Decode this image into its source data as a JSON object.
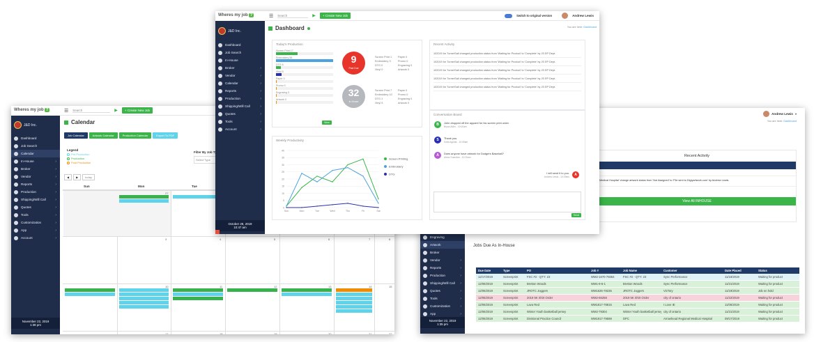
{
  "brand": {
    "name": "Wheres my job",
    "q": "?",
    "company": "J&D Inc."
  },
  "win1": {
    "search_placeholder": "Search",
    "create": "+ Create New Job",
    "page_title": "Calendar",
    "buttons": [
      "Job Calendar",
      "Artwork Calendar",
      "Production Calendar",
      "Export To PDF"
    ],
    "legend": {
      "title": "Legend",
      "items": [
        {
          "label": "Pre Production",
          "color": "#5fd3ea"
        },
        {
          "label": "Production",
          "color": "#37b24d"
        },
        {
          "label": "Post Production",
          "color": "#f08c00"
        }
      ]
    },
    "filter": {
      "label": "Filter By Job Type",
      "placeholder": "Select Type"
    },
    "today": "today",
    "days": [
      "Sun",
      "Mon",
      "Tue"
    ],
    "dates_row1": [
      "27",
      "28"
    ],
    "dates_row2": [
      "3",
      "4",
      "5",
      "6",
      "7",
      "8"
    ],
    "dates_row3": [
      "10",
      "11",
      "12",
      "13",
      "14",
      "15"
    ],
    "dates_row4": [
      "17",
      "18",
      "19",
      "20",
      "21",
      "22"
    ],
    "nav": [
      "Dashboard",
      "Job Search",
      "Calendar",
      "In-House",
      "Broker",
      "Vendor",
      "Reports",
      "Production",
      "Shipping/Will Call",
      "Quotes",
      "Tools",
      "Customization",
      "App",
      "Account"
    ],
    "clock": {
      "date": "November 22, 2019",
      "time": "1:38 pm"
    }
  },
  "win2": {
    "search_placeholder": "Search",
    "create": "+ Create New Job",
    "toggle": "Switch to original version",
    "user": "Andrew Lewis",
    "you_are": "You are here:",
    "crumb": "Dashboard",
    "page_title": "Dashboard",
    "nav": [
      "Dashboard",
      "Job Search",
      "In-House",
      "Broker",
      "Vendor",
      "Calendar",
      "Reports",
      "Production",
      "Shipping/Will Call",
      "Quotes",
      "Tools",
      "Account"
    ],
    "clock": {
      "date": "October 28, 2019",
      "time": "10:47 am"
    },
    "prod_title": "Today's Production",
    "prod_bars": [
      {
        "label": "Screen Print 17",
        "pct": 0.38,
        "color": "#3bb54a"
      },
      {
        "label": "Embroidery 56",
        "pct": 1.0,
        "color": "#4aa3df"
      },
      {
        "label": "DTG 6",
        "pct": 0.08,
        "color": "#3bb54a"
      },
      {
        "label": "Vinyl 5",
        "pct": 0.1,
        "color": "#2a2fb0"
      },
      {
        "label": "Paper 0",
        "pct": 0.0,
        "color": "#f08c00"
      },
      {
        "label": "Promo 0",
        "pct": 0.0,
        "color": "#f08c00"
      },
      {
        "label": "Engraving 0",
        "pct": 0.0,
        "color": "#f08c00"
      },
      {
        "label": "Artwork 0",
        "pct": 0.0,
        "color": "#f08c00"
      }
    ],
    "past_due": {
      "value": "9",
      "label": "Past Due"
    },
    "in_house": {
      "value": "32",
      "label": "In-House"
    },
    "prod_stats_top": [
      "Screen Print 1",
      "Paper 0",
      "Embroidery 3",
      "Promo 0",
      "DTG 0",
      "Engraving 0",
      "Vinyl 0",
      "Artwork 0"
    ],
    "prod_stats_bottom": [
      "Screen Print 7",
      "Paper 0",
      "Embroidery 10",
      "Promo 0",
      "DTG 1",
      "Engraving 0",
      "Vinyl 5",
      "Artwork 0"
    ],
    "view": "View",
    "recent_title": "Recent Activity",
    "recent": [
      "102019 for TurnerSall changed production status from 'Waiting for Product' to 'Complete' by JS EP Dept.",
      "102019 for TurnerSall changed production status from 'Waiting for Product' to 'Complete' by JS EP Dept.",
      "102019 for TurnerSall changed production status from 'Waiting for Product' to 'Complete' by JS EP Dept.",
      "102019 for TurnerSall changed production status from 'Waiting for Product' to 'Complete' by JS EP Dept.",
      "102019 for TurnerSall changed production status from 'Waiting for Product' to 'Complete' by JS EP Dept."
    ],
    "conv_title": "Conversation Board",
    "messages": [
      {
        "i": "B",
        "color": "#3bb54a",
        "text": "John dropped off the apparel for his screen print order.",
        "by": "Bryan Adler - 10:00am"
      },
      {
        "i": "S",
        "color": "#2a2fb0",
        "text": "Thank you.",
        "by": "Sofia Aguilar - 10:05am"
      },
      {
        "i": "A",
        "color": "#b85ad6",
        "text": "Does anyone have artwork for Dodgers Baseball?",
        "by": "Alexa Guardian - 10:20am"
      },
      {
        "i": "A",
        "color": "#e8352b",
        "text": "I will send it to you.",
        "by": "Andrew Lewis - 10:29am"
      }
    ],
    "send": "Send",
    "weekly_title": "Weekly Productivity",
    "chart_data": {
      "type": "line",
      "title": "Weekly Productivity",
      "categories": [
        "Sun",
        "Mon",
        "Tue",
        "Wed",
        "Thu",
        "Fri",
        "Sat"
      ],
      "ylim": [
        0,
        40
      ],
      "yticks": [
        0,
        5,
        10,
        15,
        20,
        25,
        30,
        35,
        40
      ],
      "series": [
        {
          "name": "Screen Printing",
          "color": "#3bb54a",
          "values": [
            1,
            14,
            22,
            18,
            30,
            34,
            6
          ]
        },
        {
          "name": "Embroidery",
          "color": "#4aa3df",
          "values": [
            1,
            24,
            18,
            26,
            28,
            22,
            3
          ]
        },
        {
          "name": "DTG",
          "color": "#2a2fb0",
          "values": [
            0,
            0,
            1,
            2,
            3,
            1,
            0
          ]
        }
      ]
    }
  },
  "win3": {
    "user": "Andrew Lewis",
    "you_are": "You are here:",
    "crumb": "Dashboard",
    "recent_title": "Recent Activity",
    "activity_line": "Medical Hospital' change artwork status from 'Not Assigned' to 'File sent to Digiyartwork.com' by Andrew Lewis.",
    "view_all": "View All INHOUSE",
    "jobs_title": "Jobs Due As In-House",
    "nav": [
      "Engraving",
      "Artwork",
      "Broker",
      "Vendor",
      "Reports",
      "Production",
      "Shipping/Will Call",
      "Quotes",
      "Tools",
      "Customization",
      "App"
    ],
    "clock": {
      "date": "November 22, 2019",
      "time": "1:35 pm"
    },
    "headers": [
      "Due Date",
      "Type",
      "PO",
      "Job #",
      "Job Name",
      "Customer",
      "Date Placed",
      "Status"
    ],
    "rows": [
      {
        "c": [
          "12/17/2019",
          "Screenprint",
          "FSC #2 - QTY: 23",
          "WM2-1670-79364",
          "FSC #2 - QTY: 23",
          "Sync Performance",
          "11/18/2019",
          "Waiting for product"
        ],
        "bg": "#dff3f7"
      },
      {
        "c": [
          "12/06/2019",
          "Screenprint",
          "Bretton Woods",
          "WM1-9-6-1",
          "Bretton Woods",
          "Sync Performance",
          "11/21/2019",
          "Waiting for product"
        ],
        "bg": "#d8f1d8"
      },
      {
        "c": [
          "12/06/2019",
          "Screenprint",
          "JROTC Joggers",
          "WM1626-78235",
          "JROTC Joggers",
          "VicTory",
          "11/19/2019",
          "Job on hold"
        ],
        "bg": "#d8f1d8"
      },
      {
        "c": [
          "12/06/2019",
          "Screenprint",
          "2019 5K Shirt Order",
          "WM2-66258",
          "2019 5K Shirt Order",
          "city of ontario",
          "11/22/2019",
          "Waiting for product"
        ],
        "bg": "#f7d4dc"
      },
      {
        "c": [
          "12/06/2019",
          "Screenprint",
          "Lava Red",
          "WM1817-78815",
          "Lava Red",
          "I Love IE",
          "11/05/2019",
          "Waiting for product"
        ],
        "bg": "#d8f1d8"
      },
      {
        "c": [
          "12/06/2019",
          "Screenprint",
          "Winter Youth basketball jersey",
          "WM2-79304",
          "Winter Youth basketball jersey",
          "city of ontario",
          "11/21/2019",
          "Waiting for product"
        ],
        "bg": "#d8f1d8"
      },
      {
        "c": [
          "12/06/2019",
          "Screenprint",
          "Divisional Practice Council",
          "WM1917-79598",
          "DPC",
          "Arrowhead Regional Medical Hospital",
          "09/17/2019",
          "Waiting for product"
        ],
        "bg": "#d8f1d8"
      }
    ]
  }
}
